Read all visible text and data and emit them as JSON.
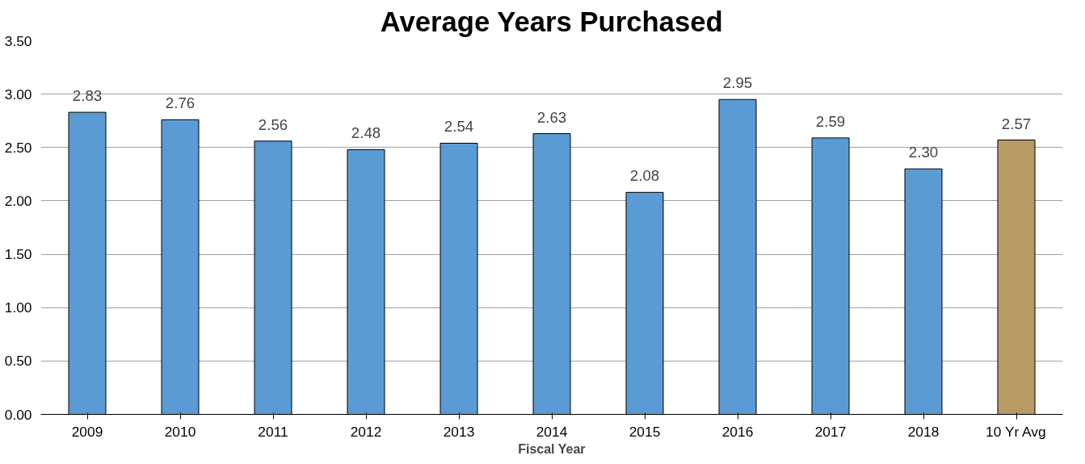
{
  "chart_data": {
    "type": "bar",
    "title": "Average Years Purchased",
    "xlabel": "Fiscal Year",
    "categories": [
      "2009",
      "2010",
      "2011",
      "2012",
      "2013",
      "2014",
      "2015",
      "2016",
      "2017",
      "2018",
      "10 Yr Avg"
    ],
    "values": [
      2.83,
      2.76,
      2.56,
      2.48,
      2.54,
      2.63,
      2.08,
      2.95,
      2.59,
      2.3,
      2.57
    ],
    "colors": [
      "#5b9bd5",
      "#5b9bd5",
      "#5b9bd5",
      "#5b9bd5",
      "#5b9bd5",
      "#5b9bd5",
      "#5b9bd5",
      "#5b9bd5",
      "#5b9bd5",
      "#5b9bd5",
      "#b89a64"
    ],
    "value_labels": [
      "2.83",
      "2.76",
      "2.56",
      "2.48",
      "2.54",
      "2.63",
      "2.08",
      "2.95",
      "2.59",
      "2.30",
      "2.57"
    ],
    "ylim": [
      0,
      3.5
    ],
    "yticks": [
      {
        "value": 0,
        "label": "0.00"
      },
      {
        "value": 0.5,
        "label": "0.50"
      },
      {
        "value": 1,
        "label": "1.00"
      },
      {
        "value": 1.5,
        "label": "1.50"
      },
      {
        "value": 2,
        "label": "2.00"
      },
      {
        "value": 2.5,
        "label": "2.50"
      },
      {
        "value": 3,
        "label": "3.00"
      },
      {
        "value": 3.5,
        "label": "3.50"
      }
    ],
    "grid": "y"
  }
}
